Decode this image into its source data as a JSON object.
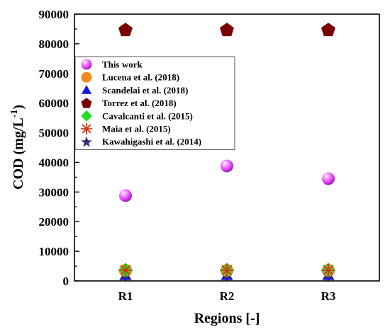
{
  "chart_data": {
    "type": "scatter",
    "title": "",
    "xlabel": "Regions [-]",
    "ylabel": "COD (mg/L",
    "ylabel_sup": "-1",
    "ylabel_close": ")",
    "categories": [
      "R1",
      "R2",
      "R3"
    ],
    "ylim": [
      0,
      90000
    ],
    "yticks": [
      "0",
      "10000",
      "20000",
      "30000",
      "40000",
      "50000",
      "60000",
      "70000",
      "80000",
      "90000"
    ],
    "ytick_values": [
      0,
      10000,
      20000,
      30000,
      40000,
      50000,
      60000,
      70000,
      80000,
      90000
    ],
    "legend_position": "upper-left",
    "grid": false,
    "series": [
      {
        "name": "This work",
        "values": [
          28800,
          38800,
          34500
        ],
        "color": "#e040fb",
        "marker": "sphere"
      },
      {
        "name": "Lucena et al. (2018)",
        "values": [
          3600,
          3600,
          3600
        ],
        "color": "#f28c1e",
        "marker": "circle"
      },
      {
        "name": "Scandelai et al. (2018)",
        "values": [
          1800,
          1800,
          1800
        ],
        "color": "#1515e6",
        "marker": "triangle"
      },
      {
        "name": "Torrez et al. (2018)",
        "values": [
          84800,
          84800,
          84800
        ],
        "color": "#7a0000",
        "marker": "pentagon"
      },
      {
        "name": "Cavalcanti et al. (2015)",
        "values": [
          3600,
          3600,
          3600
        ],
        "color": "#22dd22",
        "marker": "diamond"
      },
      {
        "name": "Maia et al. (2015)",
        "values": [
          3600,
          3600,
          3600
        ],
        "color": "#d03a1a",
        "marker": "asterisk"
      },
      {
        "name": "Kawahigashi et al. (2014)",
        "values": [
          2400,
          2400,
          2400
        ],
        "color": "#3b2a6e",
        "marker": "star"
      }
    ]
  }
}
